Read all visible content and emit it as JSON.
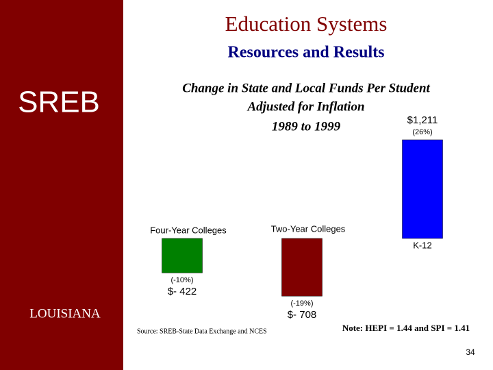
{
  "header": {
    "title": "Education Systems",
    "subtitle": "Resources and Results"
  },
  "sidebar": {
    "logo": "SREB",
    "state": "LOUISIANA"
  },
  "chart_data": {
    "type": "bar",
    "title": [
      "Change in State and Local Funds Per Student",
      "Adjusted for Inflation",
      "1989 to 1999"
    ],
    "categories": [
      "Four-Year Colleges",
      "Two-Year Colleges",
      "K-12"
    ],
    "values": [
      -422,
      -708,
      1211
    ],
    "value_labels": [
      "$- 422",
      "$- 708",
      "$1,211"
    ],
    "percent_changes": [
      {
        "value": -10,
        "label": "(-10%)"
      },
      {
        "value": -19,
        "label": "(-19%)"
      },
      {
        "value": 26,
        "label": "(26%)"
      }
    ],
    "colors": [
      "#008000",
      "#800000",
      "#0000ff"
    ]
  },
  "source": "Source: SREB-State Data Exchange and NCES",
  "note": "Note: HEPI = 1.44 and SPI = 1.41",
  "page_number": "34"
}
